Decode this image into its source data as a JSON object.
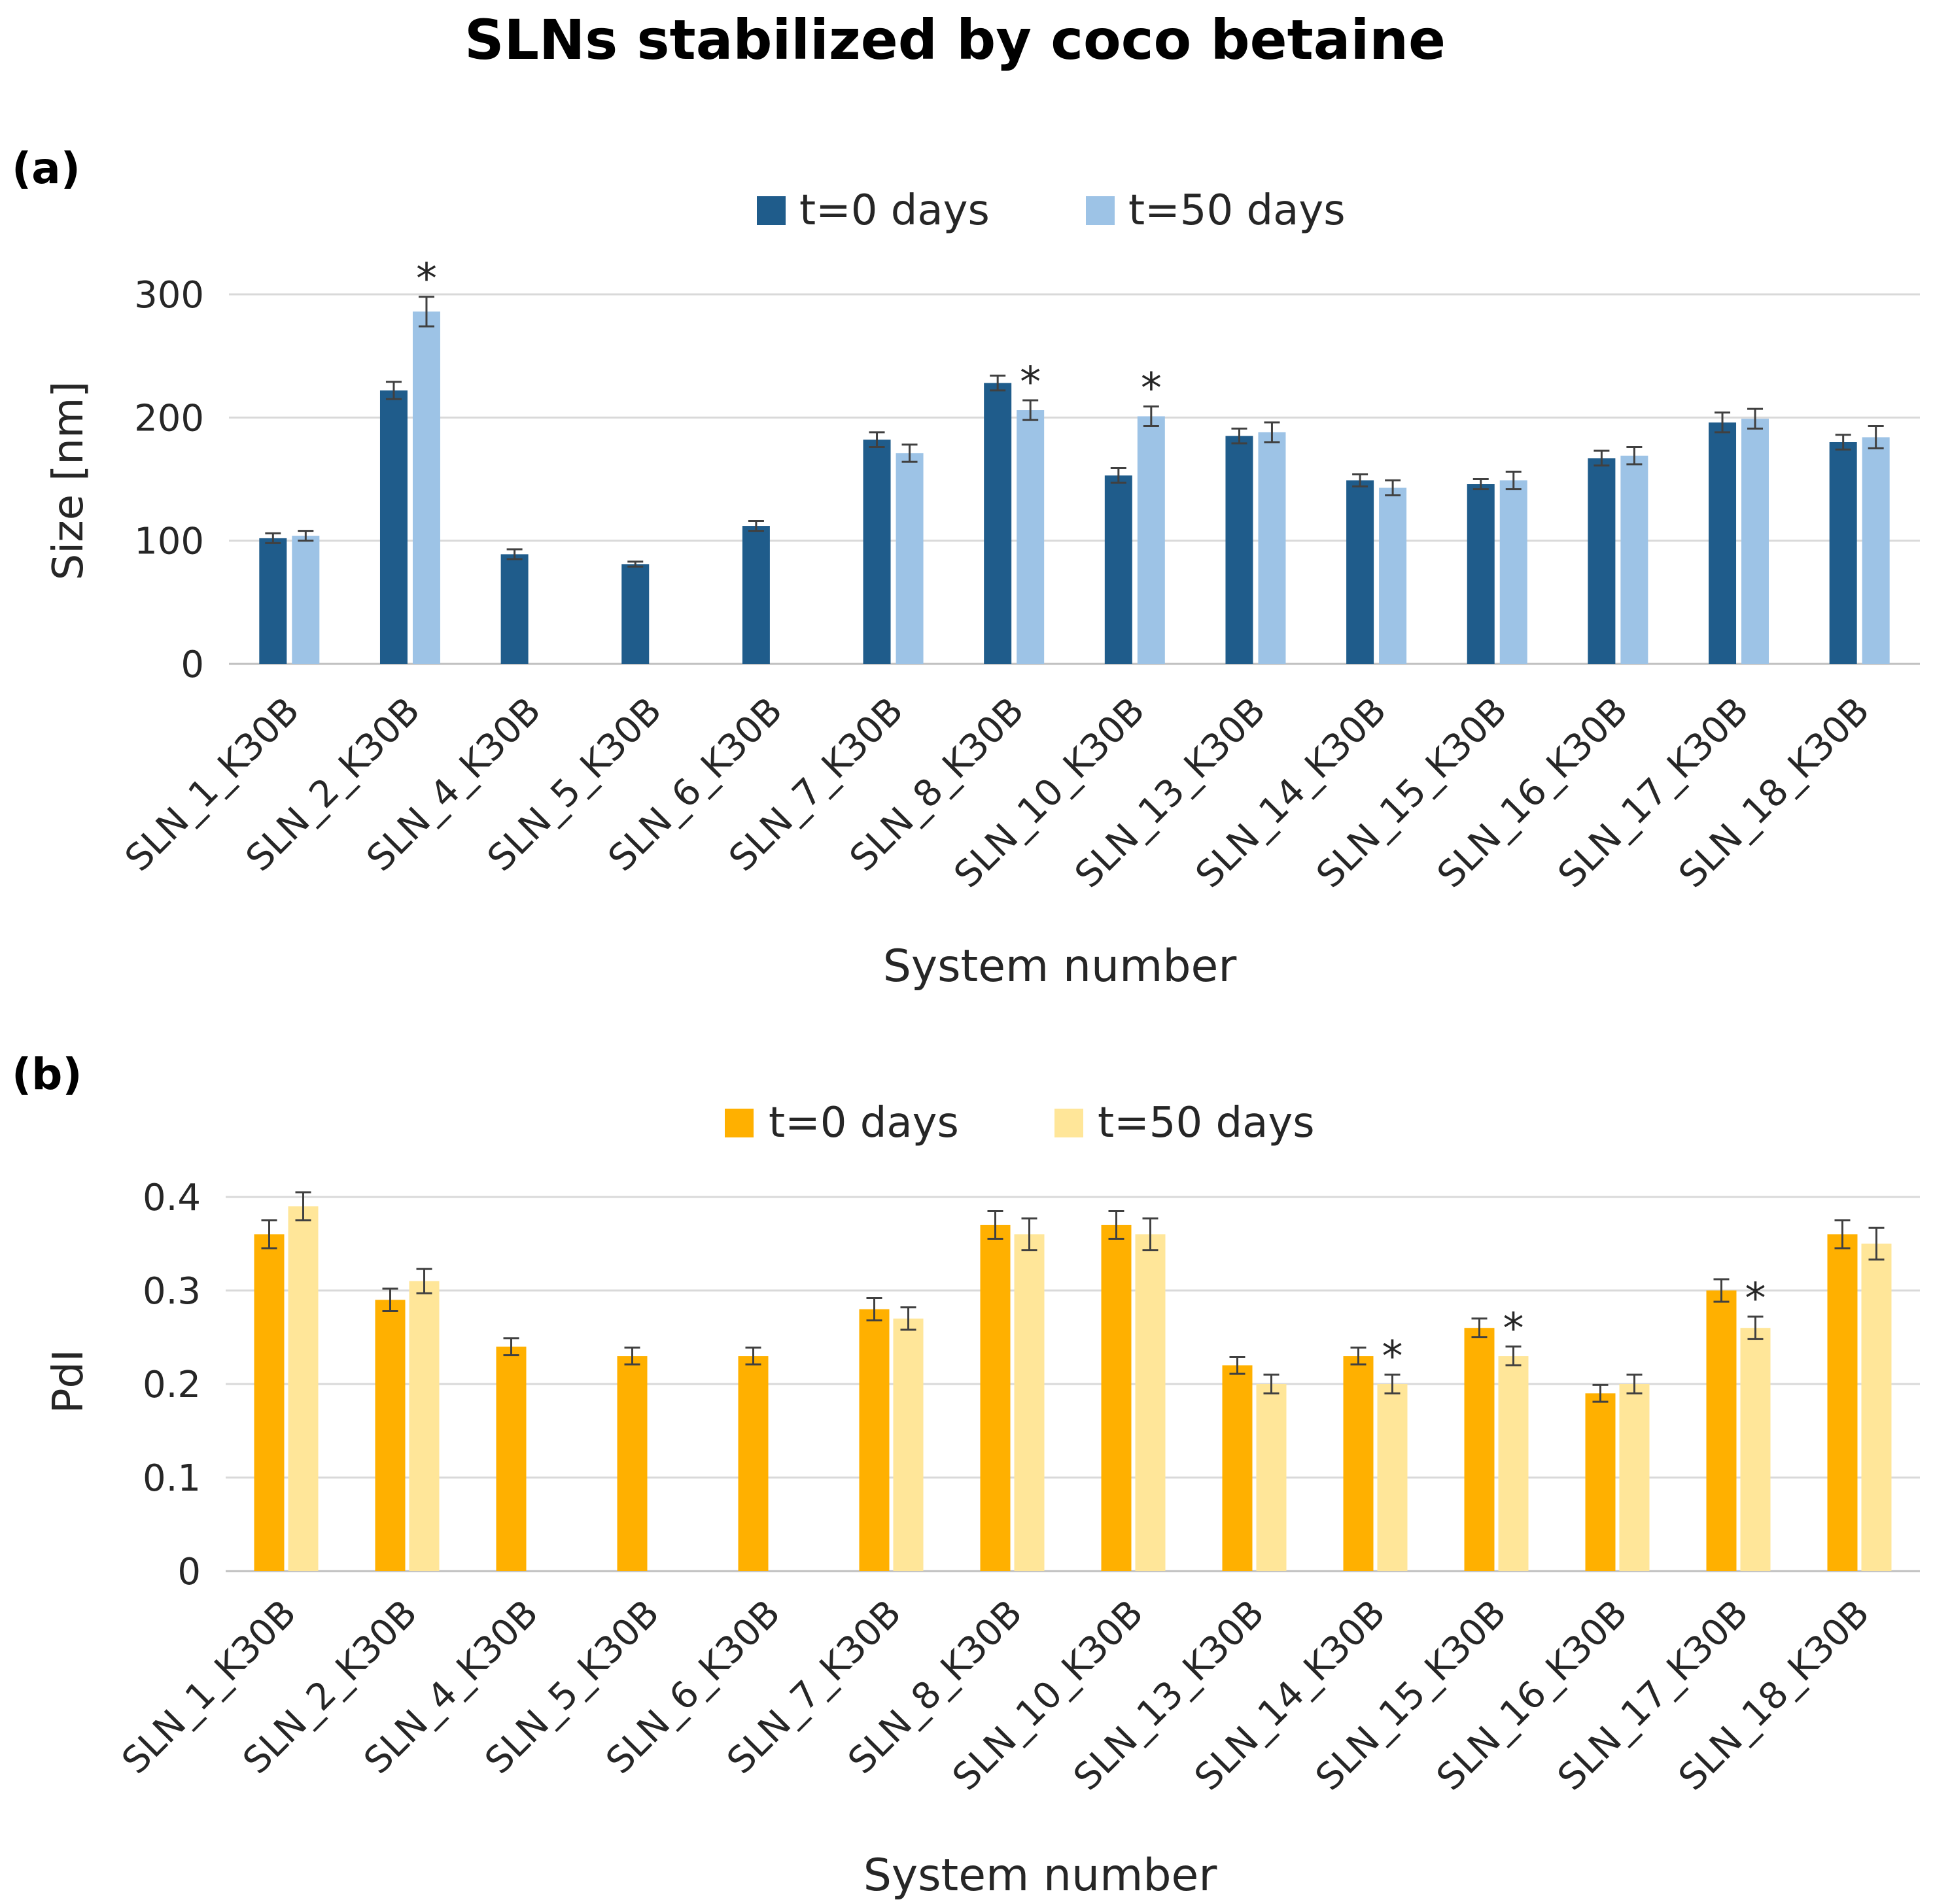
{
  "chart_data": [
    {
      "type": "bar",
      "panel_label": "(a)",
      "title": "SLNs stabilized by coco betaine",
      "xlabel": "System number",
      "ylabel": "Size  [nm]",
      "ylim": [
        0,
        300
      ],
      "yticks": [
        0,
        100,
        200,
        300
      ],
      "ytick_labels": [
        "0",
        "100",
        "200",
        "300"
      ],
      "grid": true,
      "legend_position": "top-center",
      "categories": [
        "SLN_1_K30B",
        "SLN_2_K30B",
        "SLN_4_K30B",
        "SLN_5_K30B",
        "SLN_6_K30B",
        "SLN_7_K30B",
        "SLN_8_K30B",
        "SLN_10_K30B",
        "SLN_13_K30B",
        "SLN_14_K30B",
        "SLN_15_K30B",
        "SLN_16_K30B",
        "SLN_17_K30B",
        "SLN_18_K30B"
      ],
      "series": [
        {
          "name": "t=0 days",
          "color": "#1f5c8b",
          "values": [
            102,
            222,
            89,
            81,
            112,
            182,
            228,
            153,
            185,
            149,
            146,
            167,
            196,
            180
          ],
          "errors": [
            4,
            7,
            4,
            2,
            4,
            6,
            6,
            6,
            6,
            5,
            4,
            6,
            8,
            6
          ],
          "significance": [
            null,
            null,
            null,
            null,
            null,
            null,
            null,
            null,
            null,
            null,
            null,
            null,
            null,
            null
          ]
        },
        {
          "name": "t=50 days",
          "color": "#9dc3e6",
          "values": [
            104,
            286,
            null,
            null,
            null,
            171,
            206,
            201,
            188,
            143,
            149,
            169,
            199,
            184
          ],
          "errors": [
            4,
            12,
            null,
            null,
            null,
            7,
            8,
            8,
            8,
            6,
            7,
            7,
            8,
            9
          ],
          "significance": [
            null,
            "*",
            null,
            null,
            null,
            null,
            "*",
            "*",
            null,
            null,
            null,
            null,
            null,
            null
          ]
        }
      ]
    },
    {
      "type": "bar",
      "panel_label": "(b)",
      "xlabel": "System number",
      "ylabel": "PdI",
      "ylim": [
        0,
        0.4
      ],
      "yticks": [
        0,
        0.1,
        0.2,
        0.3,
        0.4
      ],
      "ytick_labels": [
        "0",
        "0.1",
        "0.2",
        "0.3",
        "0.4"
      ],
      "grid": true,
      "legend_position": "top-center",
      "categories": [
        "SLN_1_K30B",
        "SLN_2_K30B",
        "SLN_4_K30B",
        "SLN_5_K30B",
        "SLN_6_K30B",
        "SLN_7_K30B",
        "SLN_8_K30B",
        "SLN_10_K30B",
        "SLN_13_K30B",
        "SLN_14_K30B",
        "SLN_15_K30B",
        "SLN_16_K30B",
        "SLN_17_K30B",
        "SLN_18_K30B"
      ],
      "series": [
        {
          "name": "t=0 days",
          "color": "#ffb000",
          "values": [
            0.36,
            0.29,
            0.24,
            0.23,
            0.23,
            0.28,
            0.37,
            0.37,
            0.22,
            0.23,
            0.26,
            0.19,
            0.3,
            0.36
          ],
          "errors": [
            0.015,
            0.012,
            0.009,
            0.009,
            0.009,
            0.012,
            0.015,
            0.015,
            0.009,
            0.009,
            0.01,
            0.009,
            0.012,
            0.015
          ],
          "significance": [
            null,
            null,
            null,
            null,
            null,
            null,
            null,
            null,
            null,
            null,
            null,
            null,
            null,
            null
          ]
        },
        {
          "name": "t=50 days",
          "color": "#ffe699",
          "values": [
            0.39,
            0.31,
            null,
            null,
            null,
            0.27,
            0.36,
            0.36,
            0.2,
            0.2,
            0.23,
            0.2,
            0.26,
            0.35
          ],
          "errors": [
            0.015,
            0.013,
            null,
            null,
            null,
            0.012,
            0.017,
            0.017,
            0.01,
            0.01,
            0.01,
            0.01,
            0.012,
            0.017
          ],
          "significance": [
            null,
            null,
            null,
            null,
            null,
            null,
            null,
            null,
            null,
            "*",
            "*",
            null,
            "*",
            null
          ]
        }
      ]
    }
  ]
}
